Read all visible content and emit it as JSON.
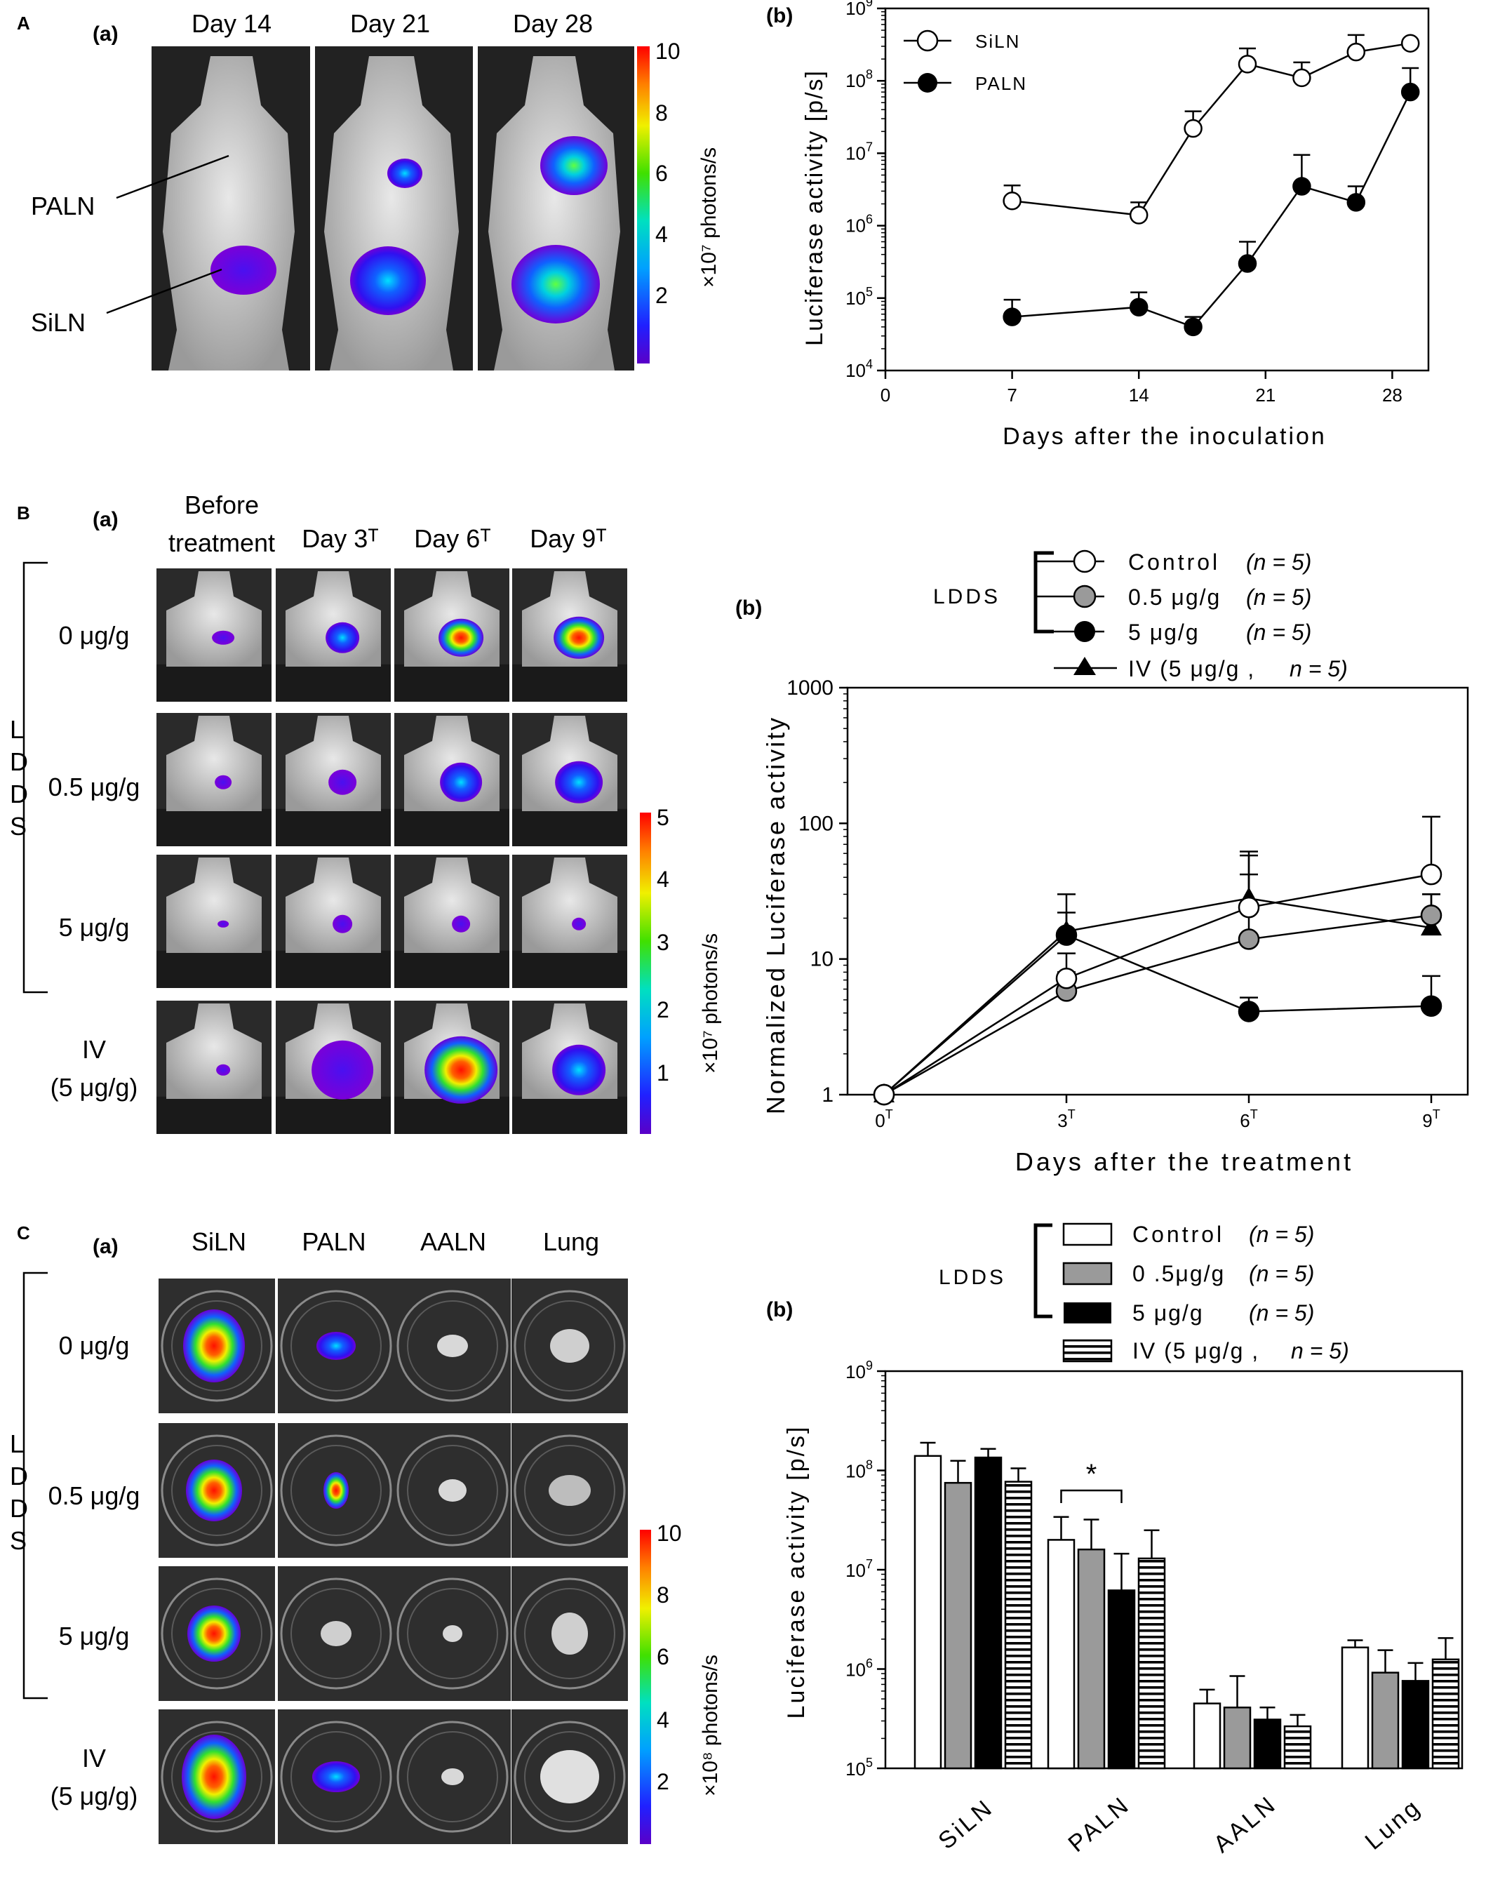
{
  "panel_A": {
    "letter": "A",
    "a": {
      "label": "(a)",
      "days": [
        "Day 14",
        "Day 21",
        "Day 28"
      ],
      "labels": {
        "paln": "PALN",
        "siln": "SiLN"
      },
      "colorbar": {
        "ticks": [
          "10",
          "8",
          "6",
          "4",
          "2"
        ],
        "unit": "×10⁷ photons/s"
      }
    }
  },
  "panel_B": {
    "letter": "B",
    "a": {
      "label": "(a)",
      "columns": [
        "Before\ntreatment",
        "Day 3ᵀ",
        "Day 6ᵀ",
        "Day 9ᵀ"
      ],
      "rows": [
        "0 μg/g",
        "0.5 μg/g",
        "5 μg/g",
        "IV\n(5 μg/g)"
      ],
      "bracket_label": "L\nD\nD\nS",
      "colorbar": {
        "ticks": [
          "5",
          "4",
          "3",
          "2",
          "1"
        ],
        "unit": "×10⁷ photons/s"
      }
    }
  },
  "panel_C": {
    "letter": "C",
    "a": {
      "label": "(a)",
      "columns": [
        "SiLN",
        "PALN",
        "AALN",
        "Lung"
      ],
      "rows": [
        "0 μg/g",
        "0.5 μg/g",
        "5 μg/g",
        "IV\n(5 μg/g)"
      ],
      "bracket_label": "L\nD\nD\nS",
      "colorbar": {
        "ticks": [
          "10",
          "8",
          "6",
          "4",
          "2"
        ],
        "unit": "×10⁸ photons/s"
      }
    }
  },
  "chart_data": [
    {
      "id": "A-b",
      "panel_label": "(b)",
      "type": "line",
      "ylog": true,
      "ylim": [
        10000,
        1000000000
      ],
      "xlim": [
        0,
        30
      ],
      "x_ticks": [
        0,
        7,
        14,
        21,
        28
      ],
      "y_ticks": [
        "10⁴",
        "10⁵",
        "10⁶",
        "10⁷",
        "10⁸",
        "10⁹"
      ],
      "xlabel": "Days after the inoculation",
      "ylabel": "Luciferase activity [p/s]",
      "legend": "top-left",
      "series": [
        {
          "name": "SiLN",
          "marker": "open-circle",
          "x": [
            7,
            14,
            17,
            20,
            23,
            26,
            29
          ],
          "y": [
            2200000,
            1400000,
            22000000,
            170000000,
            110000000,
            250000000,
            330000000
          ],
          "err_upper": [
            3600000,
            2100000,
            38000000,
            280000000,
            180000000,
            430000000,
            null
          ]
        },
        {
          "name": "PALN",
          "marker": "filled-circle",
          "x": [
            7,
            14,
            17,
            20,
            23,
            26,
            29
          ],
          "y": [
            55000,
            75000,
            40000,
            300000,
            3500000,
            2100000,
            70000000
          ],
          "err_upper": [
            95000,
            120000,
            55000,
            600000,
            9500000,
            3500000,
            150000000
          ]
        }
      ]
    },
    {
      "id": "B-b",
      "panel_label": "(b)",
      "type": "line",
      "ylog": true,
      "ylim": [
        1,
        1000
      ],
      "xlim": [
        -0.6,
        9.6
      ],
      "x_ticks": [
        "0ᵀ",
        "3ᵀ",
        "6ᵀ",
        "9ᵀ"
      ],
      "y_ticks": [
        "1",
        "10",
        "100",
        "1000"
      ],
      "xlabel": "Days after the treatment",
      "ylabel": "Normalized Luciferase activity",
      "legend_group": "LDDS",
      "legend": [
        {
          "marker": "open-circle",
          "label": "Control",
          "n": "(n = 5)"
        },
        {
          "marker": "gray-circle",
          "label": "0.5 μg/g",
          "n": "(n = 5)"
        },
        {
          "marker": "filled-circle",
          "label": "5 μg/g",
          "n": "(n = 5)"
        },
        {
          "marker": "triangle",
          "label": "IV  (5 μg/g ,",
          "n": "n = 5)"
        }
      ],
      "series": [
        {
          "name": "Control",
          "marker": "open-circle",
          "x": [
            0,
            3,
            6,
            9
          ],
          "y": [
            1,
            7.2,
            24,
            42
          ],
          "err_upper": [
            null,
            11,
            62,
            112
          ]
        },
        {
          "name": "0.5 μg/g",
          "marker": "gray-circle",
          "x": [
            0,
            3,
            6,
            9
          ],
          "y": [
            1,
            5.8,
            14,
            21
          ],
          "err_upper": [
            null,
            8,
            58,
            30
          ]
        },
        {
          "name": "5 μg/g",
          "marker": "filled-circle",
          "x": [
            0,
            3,
            6,
            9
          ],
          "y": [
            1,
            15,
            4.1,
            4.5
          ],
          "err_upper": [
            null,
            22,
            5.2,
            7.5
          ]
        },
        {
          "name": "IV (5 μg/g)",
          "marker": "triangle",
          "x": [
            0,
            3,
            6,
            9
          ],
          "y": [
            1,
            16,
            28,
            17
          ],
          "err_upper": [
            null,
            30,
            42,
            30
          ]
        }
      ]
    },
    {
      "id": "C-b",
      "panel_label": "(b)",
      "type": "bar",
      "ylog": true,
      "ylim": [
        100000,
        1000000000
      ],
      "y_ticks": [
        "10⁵",
        "10⁶",
        "10⁷",
        "10⁸",
        "10⁹"
      ],
      "ylabel": "Luciferase activity [p/s]",
      "categories": [
        "SiLN",
        "PALN",
        "AALN",
        "Lung"
      ],
      "legend_group": "LDDS",
      "legend": [
        {
          "fill": "white",
          "label": "Control",
          "n": "(n = 5)"
        },
        {
          "fill": "gray",
          "label": "0 .5μg/g",
          "n": "(n = 5)"
        },
        {
          "fill": "black",
          "label": "5 μg/g",
          "n": "(n = 5)"
        },
        {
          "fill": "stripes",
          "label": "IV (5 μg/g ,",
          "n": "n = 5)"
        }
      ],
      "annotation": "*",
      "series": [
        {
          "name": "Control",
          "fill": "white",
          "values": [
            140000000,
            20000000,
            450000,
            1650000
          ],
          "err_upper": [
            190000000,
            34000000,
            620000,
            1950000
          ]
        },
        {
          "name": "0.5 μg/g",
          "fill": "gray",
          "values": [
            75000000,
            16000000,
            410000,
            920000
          ],
          "err_upper": [
            125000000,
            32000000,
            850000,
            1550000
          ]
        },
        {
          "name": "5 μg/g",
          "fill": "black",
          "values": [
            135000000,
            6200000,
            310000,
            760000
          ],
          "err_upper": [
            165000000,
            14500000,
            410000,
            1150000
          ]
        },
        {
          "name": "IV (5 μg/g)",
          "fill": "stripes",
          "values": [
            77000000,
            13000000,
            265000,
            1250000
          ],
          "err_upper": [
            105000000,
            25000000,
            345000,
            2050000
          ]
        }
      ]
    }
  ]
}
